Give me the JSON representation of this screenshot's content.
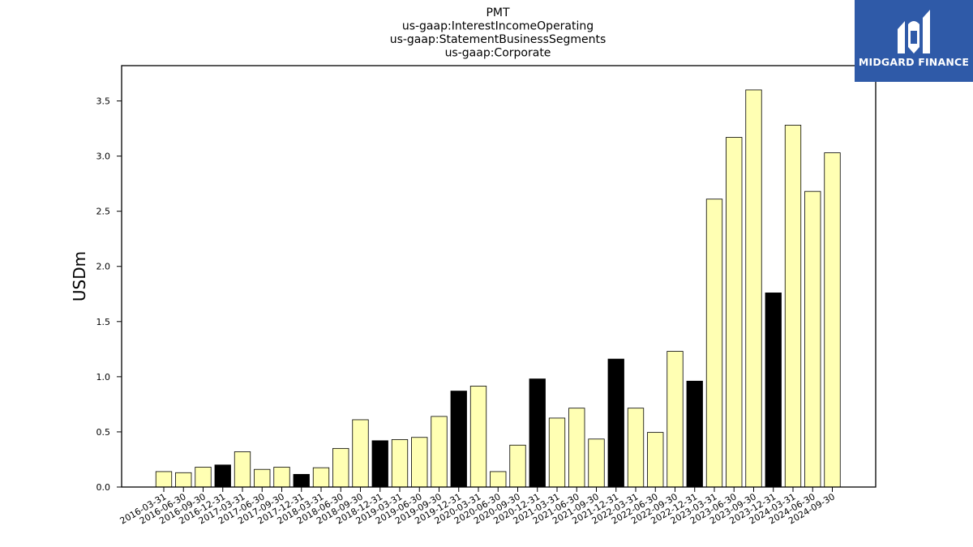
{
  "chart_data": {
    "type": "bar",
    "title_lines": [
      "PMT",
      "us-gaap:InterestIncomeOperating",
      "us-gaap:StatementBusinessSegments",
      "us-gaap:Corporate"
    ],
    "ylabel": "USDm",
    "ylim": [
      0,
      3.82
    ],
    "yticks": [
      0.0,
      0.5,
      1.0,
      1.5,
      2.0,
      2.5,
      3.0,
      3.5
    ],
    "ytick_labels": [
      "0.0",
      "0.5",
      "1.0",
      "1.5",
      "2.0",
      "2.5",
      "3.0",
      "3.5"
    ],
    "categories": [
      "2016-03-31",
      "2016-06-30",
      "2016-09-30",
      "2016-12-31",
      "2017-03-31",
      "2017-06-30",
      "2017-09-30",
      "2017-12-31",
      "2018-03-31",
      "2018-06-30",
      "2018-09-30",
      "2018-12-31",
      "2019-03-31",
      "2019-06-30",
      "2019-09-30",
      "2019-12-31",
      "2020-03-31",
      "2020-06-30",
      "2020-09-30",
      "2020-12-31",
      "2021-03-31",
      "2021-06-30",
      "2021-09-30",
      "2021-12-31",
      "2022-03-31",
      "2022-06-30",
      "2022-09-30",
      "2022-12-31",
      "2023-03-31",
      "2023-06-30",
      "2023-09-30",
      "2023-12-31",
      "2024-03-31",
      "2024-06-30",
      "2024-09-30"
    ],
    "values": [
      0.14,
      0.13,
      0.18,
      0.2,
      0.32,
      0.16,
      0.18,
      0.115,
      0.175,
      0.35,
      0.61,
      0.42,
      0.43,
      0.45,
      0.64,
      0.87,
      0.915,
      0.14,
      0.38,
      0.98,
      0.625,
      0.715,
      0.435,
      1.16,
      0.715,
      0.495,
      1.23,
      0.96,
      2.61,
      3.17,
      3.6,
      1.76,
      3.28,
      2.68,
      3.03
    ],
    "bar_colors": [
      "#ffffb3",
      "#ffffb3",
      "#ffffb3",
      "#000000",
      "#ffffb3",
      "#ffffb3",
      "#ffffb3",
      "#000000",
      "#ffffb3",
      "#ffffb3",
      "#ffffb3",
      "#000000",
      "#ffffb3",
      "#ffffb3",
      "#ffffb3",
      "#000000",
      "#ffffb3",
      "#ffffb3",
      "#ffffb3",
      "#000000",
      "#ffffb3",
      "#ffffb3",
      "#ffffb3",
      "#000000",
      "#ffffb3",
      "#ffffb3",
      "#ffffb3",
      "#000000",
      "#ffffb3",
      "#ffffb3",
      "#ffffb3",
      "#000000",
      "#ffffb3",
      "#ffffb3",
      "#ffffb3"
    ],
    "grid": false,
    "legend": "none"
  },
  "logo": {
    "text": "MIDGARD FINANCE",
    "background": "#2f5aa8"
  }
}
